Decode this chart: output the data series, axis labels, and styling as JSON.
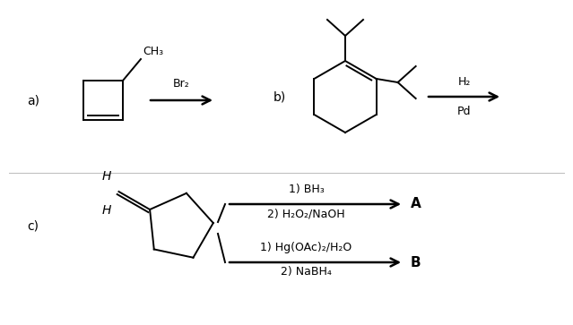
{
  "bg_color": "#ffffff",
  "text_color": "#000000",
  "fig_width": 6.39,
  "fig_height": 3.63,
  "label_a": "a)",
  "label_b": "b)",
  "label_c": "c)",
  "reagent_br2": "Br₂",
  "reagent_h2pd_top": "H₂",
  "reagent_h2pd_bot": "Pd",
  "reagent_bh3_top": "1) BH₃",
  "reagent_bh3_bot": "2) H₂O₂/NaOH",
  "reagent_hg_top": "1) Hg(OAc)₂/H₂O",
  "reagent_hg_bot": "2) NaBH₄",
  "product_A": "A",
  "product_B": "B",
  "font_size": 9,
  "font_size_label": 10,
  "font_size_product": 11
}
